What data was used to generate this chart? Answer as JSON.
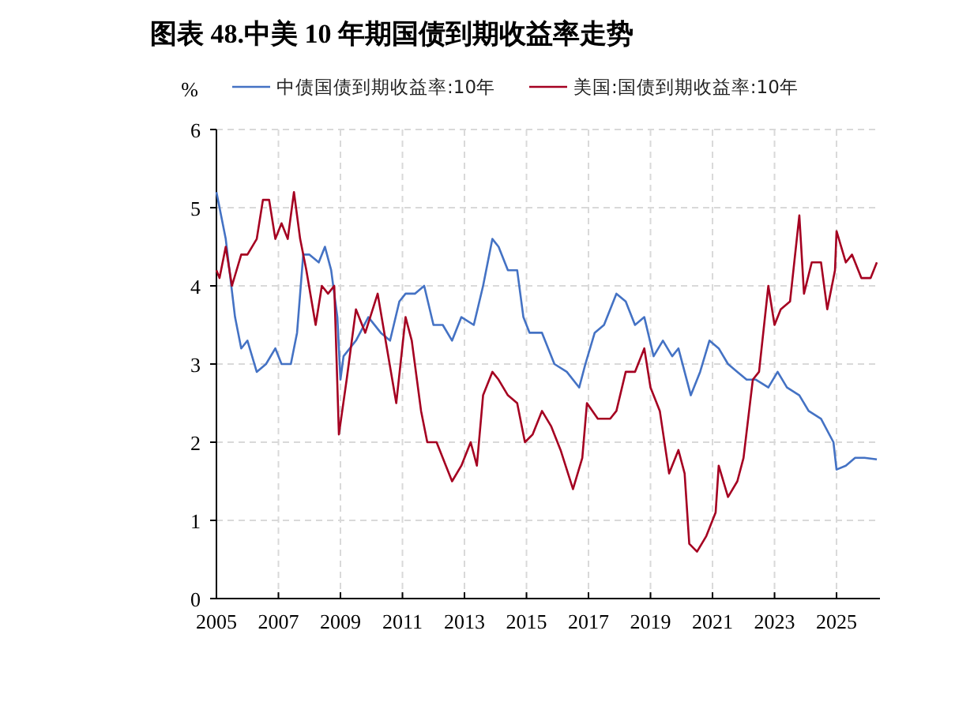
{
  "chart_data": {
    "type": "line",
    "title": "图表 48.中美 10 年期国债到期收益率走势",
    "ylabel": "%",
    "xlim": [
      2005,
      2026.4
    ],
    "xticks": [
      2005,
      2007,
      2009,
      2011,
      2013,
      2015,
      2017,
      2019,
      2021,
      2023,
      2025
    ],
    "ylim": [
      0,
      6
    ],
    "yticks": [
      0,
      1,
      2,
      3,
      4,
      5,
      6
    ],
    "grid": true,
    "legend": "top",
    "series": [
      {
        "name": "中债国债到期收益率:10年",
        "color": "#4472c4",
        "x": [
          2005.0,
          2005.3,
          2005.6,
          2005.8,
          2006.0,
          2006.3,
          2006.6,
          2006.9,
          2007.1,
          2007.4,
          2007.6,
          2007.8,
          2008.0,
          2008.3,
          2008.5,
          2008.7,
          2008.9,
          2009.0,
          2009.1,
          2009.5,
          2009.9,
          2010.3,
          2010.6,
          2010.9,
          2011.1,
          2011.4,
          2011.7,
          2012.0,
          2012.3,
          2012.6,
          2012.9,
          2013.3,
          2013.6,
          2013.9,
          2014.1,
          2014.4,
          2014.7,
          2014.9,
          2015.1,
          2015.5,
          2015.9,
          2016.3,
          2016.7,
          2016.9,
          2017.2,
          2017.5,
          2017.9,
          2018.2,
          2018.5,
          2018.8,
          2019.1,
          2019.4,
          2019.7,
          2019.9,
          2020.3,
          2020.6,
          2020.9,
          2021.2,
          2021.5,
          2021.8,
          2022.1,
          2022.4,
          2022.8,
          2023.1,
          2023.4,
          2023.8,
          2024.1,
          2024.5,
          2024.9,
          2025.0,
          2025.3,
          2025.6,
          2025.9,
          2026.3
        ],
        "values": [
          5.2,
          4.6,
          3.6,
          3.2,
          3.3,
          2.9,
          3.0,
          3.2,
          3.0,
          3.0,
          3.4,
          4.4,
          4.4,
          4.3,
          4.5,
          4.2,
          3.6,
          2.8,
          3.1,
          3.3,
          3.6,
          3.4,
          3.3,
          3.8,
          3.9,
          3.9,
          4.0,
          3.5,
          3.5,
          3.3,
          3.6,
          3.5,
          4.0,
          4.6,
          4.5,
          4.2,
          4.2,
          3.6,
          3.4,
          3.4,
          3.0,
          2.9,
          2.7,
          3.0,
          3.4,
          3.5,
          3.9,
          3.8,
          3.5,
          3.6,
          3.1,
          3.3,
          3.1,
          3.2,
          2.6,
          2.9,
          3.3,
          3.2,
          3.0,
          2.9,
          2.8,
          2.8,
          2.7,
          2.9,
          2.7,
          2.6,
          2.4,
          2.3,
          2.0,
          1.65,
          1.7,
          1.8,
          1.8,
          1.78
        ]
      },
      {
        "name": "美国:国债到期收益率:10年",
        "color": "#a50021",
        "x": [
          2005.0,
          2005.1,
          2005.3,
          2005.5,
          2005.8,
          2006.0,
          2006.3,
          2006.5,
          2006.7,
          2006.9,
          2007.1,
          2007.3,
          2007.5,
          2007.7,
          2007.9,
          2008.2,
          2008.4,
          2008.6,
          2008.8,
          2008.95,
          2009.2,
          2009.5,
          2009.8,
          2010.2,
          2010.5,
          2010.8,
          2011.1,
          2011.3,
          2011.6,
          2011.8,
          2012.1,
          2012.4,
          2012.6,
          2012.9,
          2013.2,
          2013.4,
          2013.6,
          2013.9,
          2014.1,
          2014.4,
          2014.7,
          2014.95,
          2015.2,
          2015.5,
          2015.8,
          2016.1,
          2016.5,
          2016.8,
          2016.95,
          2017.3,
          2017.7,
          2017.9,
          2018.2,
          2018.5,
          2018.8,
          2019.0,
          2019.3,
          2019.6,
          2019.9,
          2020.1,
          2020.25,
          2020.5,
          2020.8,
          2021.1,
          2021.2,
          2021.5,
          2021.8,
          2022.0,
          2022.3,
          2022.5,
          2022.8,
          2023.0,
          2023.2,
          2023.5,
          2023.8,
          2023.95,
          2024.2,
          2024.5,
          2024.7,
          2024.95,
          2025.0,
          2025.3,
          2025.5,
          2025.8,
          2026.1,
          2026.3
        ],
        "values": [
          4.2,
          4.1,
          4.5,
          4.0,
          4.4,
          4.4,
          4.6,
          5.1,
          5.1,
          4.6,
          4.8,
          4.6,
          5.2,
          4.6,
          4.2,
          3.5,
          4.0,
          3.9,
          4.0,
          2.1,
          2.8,
          3.7,
          3.4,
          3.9,
          3.2,
          2.5,
          3.6,
          3.3,
          2.4,
          2.0,
          2.0,
          1.7,
          1.5,
          1.7,
          2.0,
          1.7,
          2.6,
          2.9,
          2.8,
          2.6,
          2.5,
          2.0,
          2.1,
          2.4,
          2.2,
          1.9,
          1.4,
          1.8,
          2.5,
          2.3,
          2.3,
          2.4,
          2.9,
          2.9,
          3.2,
          2.7,
          2.4,
          1.6,
          1.9,
          1.6,
          0.7,
          0.6,
          0.8,
          1.1,
          1.7,
          1.3,
          1.5,
          1.8,
          2.8,
          2.9,
          4.0,
          3.5,
          3.7,
          3.8,
          4.9,
          3.9,
          4.3,
          4.3,
          3.7,
          4.2,
          4.7,
          4.3,
          4.4,
          4.1,
          4.1,
          4.3
        ]
      }
    ]
  }
}
